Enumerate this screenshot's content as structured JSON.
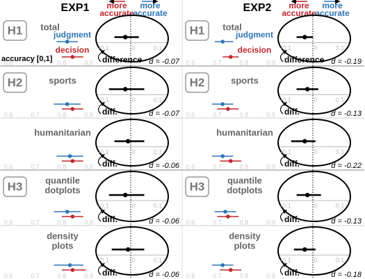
{
  "columns": [
    {
      "title": "EXP1",
      "notes": [
        {
          "lines": [
            "more",
            "accurate"
          ],
          "color": "#c0272d"
        },
        {
          "lines": [
            "more",
            "accurate"
          ],
          "color": "#2e75b6"
        }
      ]
    },
    {
      "title": "EXP2",
      "notes": [
        {
          "lines": [
            "more",
            "accurate"
          ],
          "color": "#c0272d"
        },
        {
          "lines": [
            "more",
            "accurate"
          ],
          "color": "#2e75b6"
        }
      ]
    }
  ],
  "chart_data": [
    {
      "type": "interval",
      "group_label": "H1",
      "title": [
        "total"
      ],
      "accuracy_label": "accuracy [0,1]",
      "xlim": [
        0.58,
        0.95
      ],
      "xticks": [
        0.6,
        0.7,
        0.8,
        0.9
      ],
      "series": [
        {
          "name": "judgment",
          "color": "#2e75b6",
          "value": 0.82,
          "ci": [
            0.78,
            0.86
          ]
        },
        {
          "name": "decision",
          "color": "#c0272d",
          "value": 0.84,
          "ci": [
            0.8,
            0.88
          ]
        }
      ],
      "difference": {
        "label": "difference",
        "value": -0.02,
        "ci": [
          -0.06,
          0.03
        ],
        "xlim": [
          -0.15,
          0.15
        ],
        "xticks": [
          -0.1,
          0,
          0.1
        ],
        "effect_label": "d = -0.07"
      }
    },
    {
      "type": "interval",
      "group_label": "H2",
      "title": [
        "sports"
      ],
      "xlim": [
        0.58,
        0.95
      ],
      "xticks": [
        0.6,
        0.7,
        0.8,
        0.9
      ],
      "series": [
        {
          "color": "#2e75b6",
          "value": 0.82,
          "ci": [
            0.77,
            0.87
          ]
        },
        {
          "color": "#c0272d",
          "value": 0.84,
          "ci": [
            0.8,
            0.88
          ]
        }
      ],
      "difference": {
        "label": "diff.",
        "value": -0.02,
        "ci": [
          -0.08,
          0.05
        ],
        "xlim": [
          -0.15,
          0.15
        ],
        "xticks": [
          -0.1,
          0,
          0.1
        ],
        "effect_label": "d = -0.07"
      }
    },
    {
      "type": "interval",
      "title": [
        "humanitarian"
      ],
      "xlim": [
        0.58,
        0.95
      ],
      "xticks": [
        0.6,
        0.7,
        0.8,
        0.9
      ],
      "series": [
        {
          "color": "#2e75b6",
          "value": 0.83,
          "ci": [
            0.78,
            0.88
          ]
        },
        {
          "color": "#c0272d",
          "value": 0.84,
          "ci": [
            0.8,
            0.88
          ]
        }
      ],
      "difference": {
        "label": "diff.",
        "value": -0.01,
        "ci": [
          -0.06,
          0.05
        ],
        "xlim": [
          -0.15,
          0.15
        ],
        "xticks": [
          -0.1,
          0,
          0.1
        ],
        "effect_label": "d = -0.06"
      }
    },
    {
      "type": "interval",
      "group_label": "H3",
      "title": [
        "quantile",
        "dotplots"
      ],
      "xlim": [
        0.58,
        0.95
      ],
      "xticks": [
        0.6,
        0.7,
        0.8,
        0.9
      ],
      "series": [
        {
          "color": "#2e75b6",
          "value": 0.82,
          "ci": [
            0.77,
            0.87
          ]
        },
        {
          "color": "#c0272d",
          "value": 0.84,
          "ci": [
            0.8,
            0.88
          ]
        }
      ],
      "difference": {
        "label": "diff.",
        "value": -0.02,
        "ci": [
          -0.08,
          0.05
        ],
        "xlim": [
          -0.15,
          0.15
        ],
        "xticks": [
          -0.1,
          0,
          0.1
        ],
        "effect_label": "d = -0.06"
      }
    },
    {
      "type": "interval",
      "title": [
        "density",
        "plots"
      ],
      "xlim": [
        0.58,
        0.95
      ],
      "xticks": [
        0.6,
        0.7,
        0.8,
        0.9
      ],
      "series": [
        {
          "color": "#2e75b6",
          "value": 0.83,
          "ci": [
            0.77,
            0.88
          ]
        },
        {
          "color": "#c0272d",
          "value": 0.84,
          "ci": [
            0.8,
            0.89
          ]
        }
      ],
      "difference": {
        "label": "diff.",
        "value": -0.01,
        "ci": [
          -0.07,
          0.05
        ],
        "xlim": [
          -0.15,
          0.15
        ],
        "xticks": [
          -0.1,
          0,
          0.1
        ],
        "effect_label": "d = -0.06"
      }
    },
    {
      "type": "interval",
      "group_label": "H1",
      "title": [
        "total"
      ],
      "xlim": [
        0.58,
        0.95
      ],
      "xticks": [
        0.6,
        0.7,
        0.8,
        0.9
      ],
      "series": [
        {
          "name": "judgment",
          "color": "#2e75b6",
          "value": 0.72,
          "ci": [
            0.69,
            0.76
          ]
        },
        {
          "name": "decision",
          "color": "#c0272d",
          "value": 0.75,
          "ci": [
            0.72,
            0.78
          ]
        }
      ],
      "difference": {
        "label": "difference",
        "value": -0.03,
        "ci": [
          -0.06,
          0.0
        ],
        "xlim": [
          -0.15,
          0.15
        ],
        "xticks": [
          -0.1,
          0,
          0.1
        ],
        "effect_label": "d = -0.19"
      }
    },
    {
      "type": "interval",
      "group_label": "H2",
      "title": [
        "sports"
      ],
      "xlim": [
        0.58,
        0.95
      ],
      "xticks": [
        0.6,
        0.7,
        0.8,
        0.9
      ],
      "series": [
        {
          "color": "#2e75b6",
          "value": 0.72,
          "ci": [
            0.68,
            0.76
          ]
        },
        {
          "color": "#c0272d",
          "value": 0.74,
          "ci": [
            0.7,
            0.78
          ]
        }
      ],
      "difference": {
        "label": "diff.",
        "value": -0.02,
        "ci": [
          -0.06,
          0.02
        ],
        "xlim": [
          -0.15,
          0.15
        ],
        "xticks": [
          -0.1,
          0,
          0.1
        ],
        "effect_label": "d = -0.13"
      }
    },
    {
      "type": "interval",
      "title": [
        "humanitarian"
      ],
      "xlim": [
        0.58,
        0.95
      ],
      "xticks": [
        0.6,
        0.7,
        0.8,
        0.9
      ],
      "series": [
        {
          "color": "#2e75b6",
          "value": 0.72,
          "ci": [
            0.68,
            0.76
          ]
        },
        {
          "color": "#c0272d",
          "value": 0.75,
          "ci": [
            0.71,
            0.79
          ]
        }
      ],
      "difference": {
        "label": "diff.",
        "value": -0.03,
        "ci": [
          -0.08,
          0.01
        ],
        "xlim": [
          -0.15,
          0.15
        ],
        "xticks": [
          -0.1,
          0,
          0.1
        ],
        "effect_label": "d = -0.22"
      }
    },
    {
      "type": "interval",
      "group_label": "H3",
      "title": [
        "quantile",
        "dotplots"
      ],
      "xlim": [
        0.58,
        0.95
      ],
      "xticks": [
        0.6,
        0.7,
        0.8,
        0.9
      ],
      "series": [
        {
          "color": "#2e75b6",
          "value": 0.73,
          "ci": [
            0.69,
            0.77
          ]
        },
        {
          "color": "#c0272d",
          "value": 0.74,
          "ci": [
            0.7,
            0.78
          ]
        }
      ],
      "difference": {
        "label": "diff.",
        "value": -0.02,
        "ci": [
          -0.06,
          0.03
        ],
        "xlim": [
          -0.15,
          0.15
        ],
        "xticks": [
          -0.1,
          0,
          0.1
        ],
        "effect_label": "d = -0.13"
      }
    },
    {
      "type": "interval",
      "title": [
        "density",
        "plots"
      ],
      "xlim": [
        0.58,
        0.95
      ],
      "xticks": [
        0.6,
        0.7,
        0.8,
        0.9
      ],
      "series": [
        {
          "color": "#2e75b6",
          "value": 0.72,
          "ci": [
            0.68,
            0.76
          ]
        },
        {
          "color": "#c0272d",
          "value": 0.75,
          "ci": [
            0.71,
            0.79
          ]
        }
      ],
      "difference": {
        "label": "diff.",
        "value": -0.03,
        "ci": [
          -0.07,
          0.01
        ],
        "xlim": [
          -0.15,
          0.15
        ],
        "xticks": [
          -0.1,
          0,
          0.1
        ],
        "effect_label": "d = -0.18"
      }
    }
  ]
}
